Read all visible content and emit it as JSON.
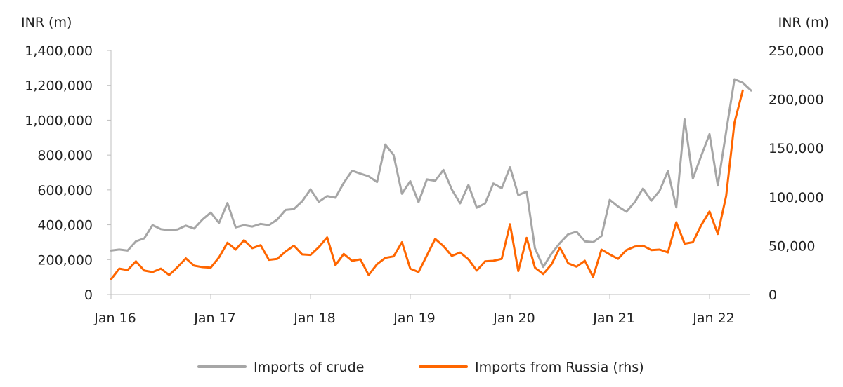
{
  "chart_data": {
    "type": "line",
    "left_axis_unit": "INR (m)",
    "right_axis_unit": "INR (m)",
    "y_left_ticks": [
      "0",
      "200,000",
      "400,000",
      "600,000",
      "800,000",
      "1,000,000",
      "1,200,000",
      "1,400,000"
    ],
    "y_right_ticks": [
      "0",
      "50,000",
      "100,000",
      "150,000",
      "200,000",
      "250,000"
    ],
    "y_left_lim": [
      0,
      1400000
    ],
    "y_right_lim": [
      0,
      250000
    ],
    "x_ticks": [
      "Jan 16",
      "Jan 17",
      "Jan 18",
      "Jan 19",
      "Jan 20",
      "Jan 21",
      "Jan 22"
    ],
    "x_start": "2016-01",
    "series": [
      {
        "name": "Imports of crude",
        "axis": "left",
        "color": "#a6a6a6",
        "values": [
          252000,
          258000,
          252000,
          305000,
          322000,
          398000,
          375000,
          368000,
          373000,
          395000,
          378000,
          430000,
          470000,
          410000,
          525000,
          385000,
          398000,
          390000,
          405000,
          398000,
          430000,
          485000,
          490000,
          535000,
          603000,
          532000,
          565000,
          555000,
          640000,
          710000,
          693000,
          678000,
          645000,
          860000,
          800000,
          578000,
          650000,
          530000,
          660000,
          652000,
          715000,
          602000,
          523000,
          628000,
          498000,
          522000,
          637000,
          610000,
          730000,
          570000,
          590000,
          265000,
          158000,
          235000,
          295000,
          345000,
          360000,
          305000,
          300000,
          335000,
          543000,
          505000,
          475000,
          530000,
          608000,
          538000,
          595000,
          708000,
          500000,
          1005000,
          665000,
          795000,
          920000,
          625000,
          935000,
          1235000,
          1215000,
          1170000
        ]
      },
      {
        "name": "Imports from Russia (rhs)",
        "axis": "right",
        "color": "#ff6600",
        "values": [
          15500,
          26500,
          25000,
          34000,
          24500,
          23000,
          26500,
          20000,
          28000,
          37000,
          29500,
          28000,
          27500,
          38000,
          53000,
          46000,
          55500,
          47500,
          50500,
          35500,
          36500,
          44000,
          50000,
          41000,
          40500,
          48500,
          58500,
          30000,
          41500,
          34500,
          36000,
          20000,
          31000,
          37500,
          39000,
          53500,
          26500,
          23000,
          40000,
          57000,
          49500,
          39500,
          43000,
          36000,
          24500,
          34000,
          34500,
          36500,
          72000,
          24000,
          58000,
          27500,
          21000,
          31000,
          48000,
          32000,
          28500,
          34500,
          18000,
          46000,
          41000,
          36500,
          45500,
          49000,
          50000,
          45500,
          46000,
          43000,
          74000,
          52000,
          53500,
          71000,
          85000,
          62000,
          101000,
          176000,
          209000
        ]
      }
    ],
    "legend": "bottom-center",
    "grid": false
  }
}
